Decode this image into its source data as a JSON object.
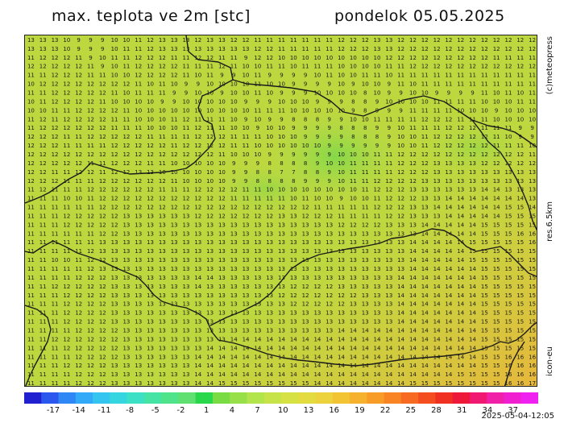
{
  "header": {
    "title": "max. teplota ve 2m [stc]",
    "date": "pondelok 05.05.2025"
  },
  "side_labels": {
    "top": "(c)meteopress",
    "middle": "res.6.5km",
    "bottom": "icon-eu"
  },
  "map": {
    "temperature_rows": [
      "13 13 13 10 9 9 9 10 10 11 12 13 13 13 12 13 13 12 12 11 11 11 11 11 11 11 12 12 12 13 13 12 12 12 12 12 12 12 12 12 12 12 12",
      "13 13 13 10 9 9 9 10 11 11 12 13 13 13 13 13 13 13 13 12 12 11 11 11 11 11 12 12 12 13 13 12 12 12 12 12 12 12 12 12 12 12 12",
      "11 12 12 12 11 9 10 11 11 12 12 12 11 11 12 12 11 11 9 12 12 10 10 10 10 10 10 10 10 10 12 12 12 12 12 12 12 12 12 11 11 11 11",
      "12 12 12 12 12 11 9 10 11 12 12 12 12 11 11 11 12 11 10 10 11 11 10 11 11 11 10 10 10 10 11 11 12 12 12 12 12 12 12 12 12 12 12",
      "11 11 12 12 12 11 11 10 10 12 12 12 12 11 10 11 9 9 10 11 9 9 9 9 10 11 10 10 11 11 10 11 11 11 11 11 11 11 11 11 11 11 11",
      "10 12 12 12 12 12 12 12 12 11 10 11 10 9 9 10 10 10 10 11 10 10 9 9 9 9 10 9 10 10 9 11 10 11 11 11 11 11 11 11 11 11 11",
      "11 11 12 12 12 12 12 11 10 11 11 11 9 9 10 10 9 10 10 11 10 9 9 9 10 10 10 10 8 10 9 9 10 10 9 9 9 9 11 10 11 10 11",
      "10 11 12 12 12 12 11 10 10 10 10 9 9 10 10 10 10 10 9 9 9 10 10 10 9 9 9 8 8 9 10 10 10 10 11 11 11 11 10 10 10 11 11",
      "10 10 11 11 12 12 12 12 11 10 10 10 10 10 10 10 10 10 10 11 11 11 10 10 10 10 10 9 8 9 9 9 11 11 11 11 10 10 10 9 10 10 10",
      "11 12 11 12 12 12 12 11 11 10 10 10 11 12 11 11 11 10 9 10 9 9 8 8 8 9 9 10 10 11 11 11 11 12 12 12 11 11 11 10 10 10 10",
      "11 12 12 12 12 12 12 11 11 11 10 10 10 11 12 11 11 10 10 9 10 10 9 9 9 9 8 8 8 9 9 10 11 11 11 12 12 12 11 11 11 9 9",
      "12 12 12 11 11 12 12 12 12 12 11 11 11 11 12 12 12 11 11 11 10 10 10 9 9 9 9 8 8 8 9 10 10 11 12 12 12 12 12 11 10 9 9",
      "12 12 12 11 11 11 11 12 12 12 12 12 11 12 12 12 12 11 11 10 10 10 10 10 10 9 9 9 9 9 9 10 10 11 12 12 12 12 12 11 11 11 10",
      "12 12 12 12 12 12 12 12 12 12 12 12 12 12 12 12 11 10 10 10 9 9 9 9 9 9 10 10 10 11 11 12 12 12 12 12 12 12 12 12 12 12 11",
      "12 12 12 12 12 11 11 12 12 12 11 11 10 10 10 10 10 9 9 9 8 8 8 8 9 10 10 11 11 11 11 12 12 12 13 13 13 13 12 12 12 12 12",
      "12 12 11 11 12 12 11 12 12 13 13 10 10 10 10 10 10 9 9 8 8 7 7 8 8 9 10 11 11 11 11 12 12 12 13 13 13 13 13 13 13 13 13",
      "12 12 12 11 11 11 12 12 12 12 12 12 11 10 10 10 10 9 9 8 8 8 8 9 9 9 10 11 11 12 12 12 12 13 13 13 13 13 13 13 13 13 13",
      "11 12 11 11 11 12 12 12 12 12 12 11 11 11 12 12 12 12 11 11 10 10 10 10 10 10 10 10 11 12 12 12 13 13 13 13 13 13 14 14 13 13 13",
      "11 11 11 10 10 11 12 12 12 12 12 12 12 12 12 12 12 11 11 11 11 11 10 11 10 10 9 10 10 11 12 12 12 13 13 14 14 14 14 14 14 14 13",
      "11 11 11 11 11 11 12 12 12 12 12 12 12 12 12 12 12 12 12 12 12 12 12 12 11 11 11 11 11 12 12 12 13 13 14 14 14 14 14 14 15 15 14",
      "11 11 11 12 12 12 12 12 13 13 13 13 13 13 12 12 12 12 12 12 12 13 13 12 12 12 11 11 11 11 12 12 13 13 13 14 14 14 14 14 15 15 15",
      "11 11 11 12 12 12 12 12 13 13 13 13 13 13 13 13 13 13 13 13 13 13 13 13 13 13 12 12 12 12 13 13 13 14 14 14 14 14 15 15 15 15 15",
      "11 11 11 11 11 11 12 12 13 13 13 13 13 13 13 13 13 13 13 13 13 13 13 13 13 13 13 13 13 13 13 13 13 14 14 14 14 14 15 15 15 16 16",
      "11 11 11 11 11 11 13 13 13 13 13 13 13 13 13 13 13 13 13 13 13 13 13 13 13 13 13 13 13 13 13 13 14 14 14 14 14 15 15 15 15 15 16",
      "11 11 11 11 11 12 13 13 13 13 13 13 13 13 13 13 13 13 13 13 13 13 13 13 13 13 13 13 13 13 13 13 14 14 14 14 14 15 15 15 15 15 15",
      "11 11 10 10 11 12 12 13 13 13 13 13 13 13 13 13 13 13 13 13 13 13 13 13 13 13 13 13 13 13 13 13 14 14 14 14 14 15 15 15 15 15 15",
      "11 11 11 11 11 12 13 13 13 13 13 13 13 13 13 13 13 13 13 13 13 13 13 13 13 13 13 13 13 13 13 13 14 14 14 14 14 14 15 15 15 15 15",
      "11 11 11 11 12 12 12 13 13 13 13 13 13 13 14 14 13 13 13 13 13 13 13 13 13 13 13 13 13 13 13 14 14 14 14 14 14 14 15 15 15 15 15",
      "11 11 12 12 12 12 12 13 13 13 13 13 13 13 14 13 13 13 13 13 13 13 12 12 12 12 13 13 13 13 13 14 14 14 14 14 14 14 15 15 15 15 15",
      "11 11 11 12 12 12 12 13 13 13 13 13 13 13 13 13 13 13 13 13 13 12 12 12 12 12 12 12 13 13 13 14 14 14 14 14 14 14 15 15 15 15 15",
      "11 11 11 12 12 12 12 13 13 13 13 13 13 13 13 13 13 13 13 13 13 13 12 12 12 12 12 13 13 13 13 14 14 14 14 14 14 14 15 15 15 15 15",
      "11 11 11 12 12 12 12 13 13 13 13 13 13 13 13 13 13 13 13 13 13 13 13 13 13 13 13 13 13 13 13 14 14 14 14 14 14 14 15 15 15 15 15",
      "11 11 11 12 12 12 12 13 13 13 13 13 13 13 13 13 13 13 13 13 13 13 13 13 13 13 13 13 13 13 13 14 14 14 14 14 14 14 15 15 15 15 15",
      "11 11 11 11 12 12 12 12 13 13 13 13 13 13 13 13 13 13 13 13 13 13 13 13 13 13 14 14 14 14 14 14 14 14 14 14 14 14 15 15 15 15 15",
      "11 11 12 12 12 12 12 12 13 13 13 13 13 13 13 13 13 14 14 14 14 14 14 14 14 14 14 14 14 14 14 14 14 14 14 14 14 14 15 15 15 15 15",
      "11 11 11 12 12 12 12 12 13 13 13 13 13 13 13 14 14 14 14 14 14 14 14 14 14 14 14 14 14 14 14 14 14 14 14 14 14 14 15 15 15 15 15",
      "11 11 11 11 12 12 12 12 13 13 13 13 13 13 14 14 14 14 14 14 14 14 14 14 14 14 14 14 14 14 14 14 14 14 14 14 14 14 15 15 16 16 16",
      "11 11 11 12 12 12 12 13 13 13 13 13 13 13 14 14 14 14 14 14 14 14 14 14 14 14 14 14 14 14 14 14 14 14 14 14 14 14 15 15 16 16 16",
      "11 11 11 11 12 12 12 13 13 13 13 13 13 13 14 14 14 14 14 14 14 14 14 14 14 14 14 14 14 14 14 14 14 14 14 14 15 15 15 15 16 16 16",
      "11 11 11 11 12 12 12 13 13 13 13 13 13 13 14 14 15 15 15 15 15 15 15 15 14 14 14 14 14 14 14 14 15 15 15 15 15 15 15 15 16 16 17"
    ]
  },
  "colorbar": {
    "colors": [
      "#2020d0",
      "#2a58ee",
      "#2f86f5",
      "#33aaf7",
      "#34c4f0",
      "#35d6e0",
      "#3ce0c4",
      "#45e4a4",
      "#4fe48a",
      "#5fe070",
      "#28d84a",
      "#7adc44",
      "#98e04a",
      "#b2e44c",
      "#c6e44a",
      "#d6e244",
      "#e2dc40",
      "#ecd23c",
      "#f2c434",
      "#f6b22e",
      "#f89c28",
      "#f88424",
      "#f66a22",
      "#f44e20",
      "#f03020",
      "#ee1838",
      "#f01870",
      "#f020a8",
      "#f020d0",
      "#f020f0"
    ],
    "tick_labels": [
      "-17",
      "-14",
      "-11",
      "-8",
      "-5",
      "-2",
      "1",
      "4",
      "7",
      "10",
      "13",
      "16",
      "19",
      "22",
      "25",
      "28",
      "31",
      "34",
      "37"
    ]
  },
  "footer": {
    "timestamp": "2025-05-04-12:05"
  }
}
